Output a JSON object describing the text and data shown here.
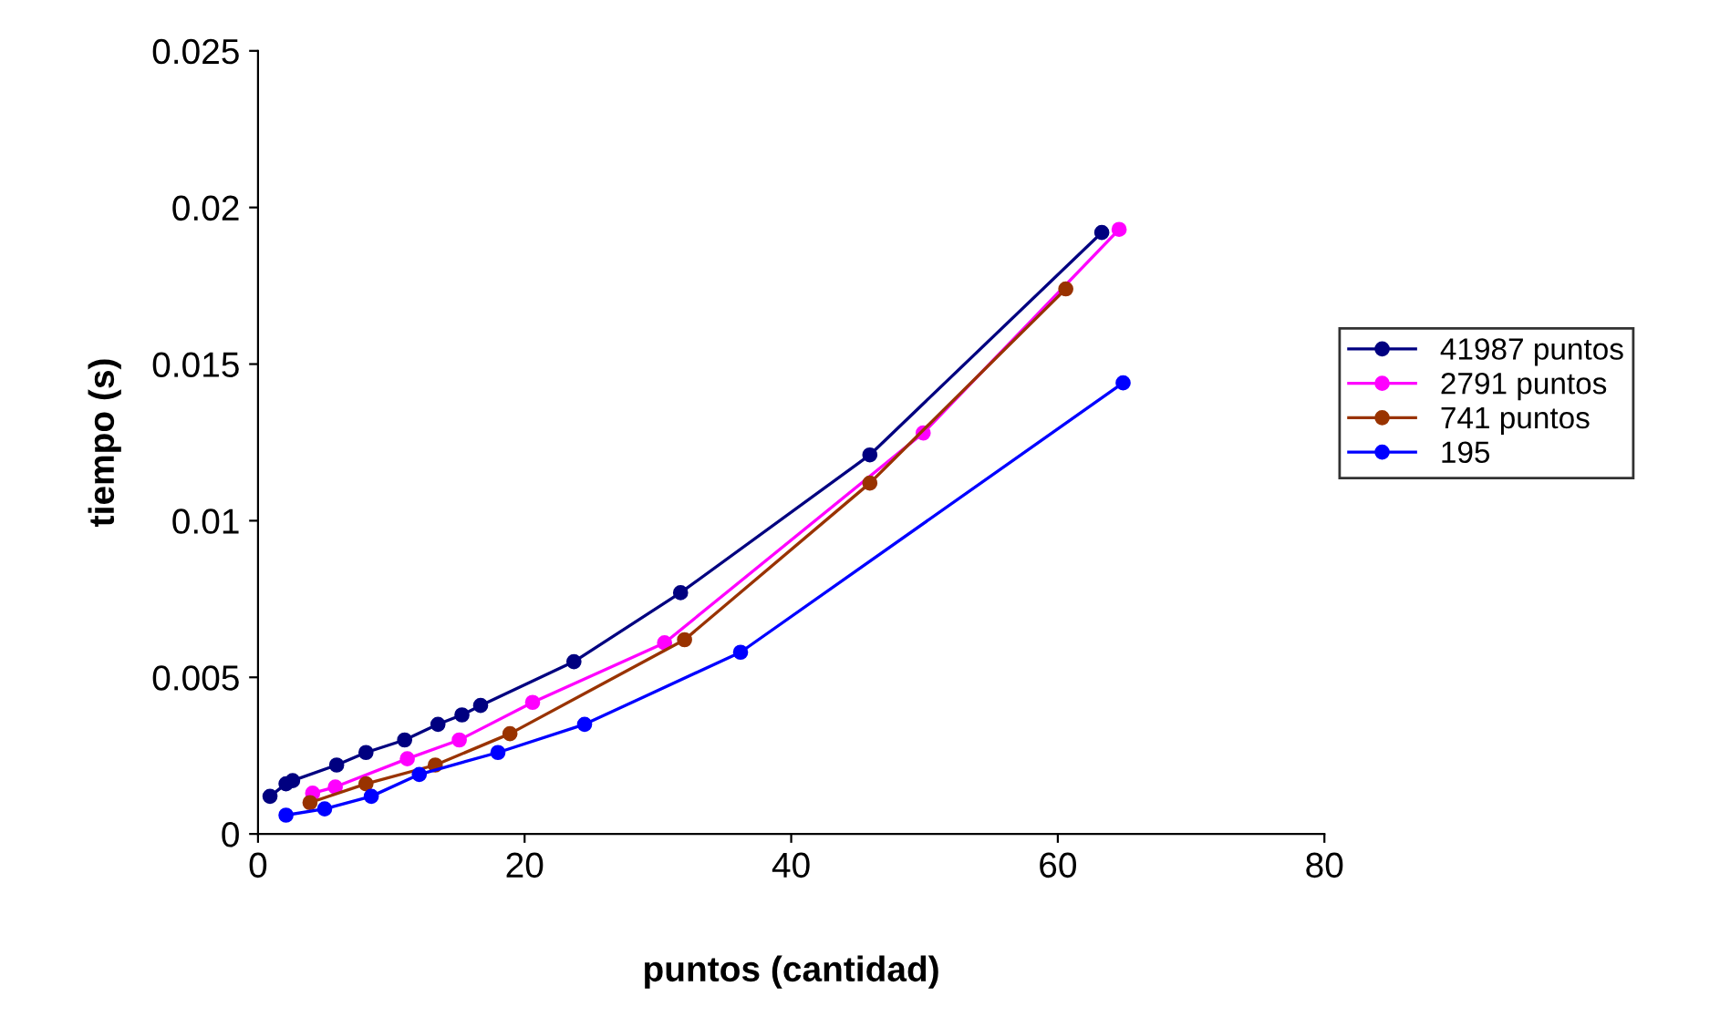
{
  "chart_data": {
    "type": "line",
    "xlabel": "puntos (cantidad)",
    "ylabel": "tiempo (s)",
    "xlim": [
      0,
      80
    ],
    "xticks": [
      0,
      20,
      40,
      60,
      80
    ],
    "ylim": [
      0,
      0.025
    ],
    "yticks": [
      0,
      0.005,
      0.01,
      0.015,
      0.02,
      0.025
    ],
    "grid": false,
    "legend": "right",
    "marker": "circle",
    "line_style": "solid",
    "series": [
      {
        "name": "41987 puntos",
        "color": "#000080",
        "x": [
          0.9,
          2.1,
          2.6,
          5.9,
          8.1,
          11.0,
          13.5,
          15.3,
          16.7,
          23.7,
          31.7,
          45.9,
          63.3
        ],
        "values": [
          0.0012,
          0.0016,
          0.0017,
          0.0022,
          0.0026,
          0.003,
          0.0035,
          0.0038,
          0.0041,
          0.0055,
          0.0077,
          0.0121,
          0.0192
        ]
      },
      {
        "name": "2791 puntos",
        "color": "#ff00ff",
        "x": [
          4.1,
          5.8,
          11.2,
          15.1,
          20.6,
          30.5,
          49.9,
          64.6
        ],
        "values": [
          0.0013,
          0.0015,
          0.0024,
          0.003,
          0.0042,
          0.0061,
          0.0128,
          0.0193
        ]
      },
      {
        "name": "741 puntos",
        "color": "#993300",
        "x": [
          3.9,
          8.1,
          13.3,
          18.9,
          32.0,
          45.9,
          60.6
        ],
        "values": [
          0.001,
          0.0016,
          0.0022,
          0.0032,
          0.0062,
          0.0112,
          0.0174
        ]
      },
      {
        "name": "195",
        "color": "#0000ff",
        "x": [
          2.1,
          5.0,
          8.5,
          12.1,
          18.0,
          24.5,
          36.2,
          64.9
        ],
        "values": [
          0.0006,
          0.0008,
          0.0012,
          0.0019,
          0.0026,
          0.0035,
          0.0058,
          0.0144
        ]
      }
    ]
  }
}
